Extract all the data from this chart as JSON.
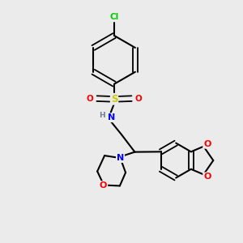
{
  "background_color": "#ebebeb",
  "atom_colors": {
    "C": "#000000",
    "H": "#708090",
    "N": "#0000ff",
    "O": "#ff0000",
    "S": "#cccc00",
    "Cl": "#00cc00"
  },
  "bond_color": "#000000",
  "figsize": [
    3.0,
    3.0
  ],
  "dpi": 100
}
